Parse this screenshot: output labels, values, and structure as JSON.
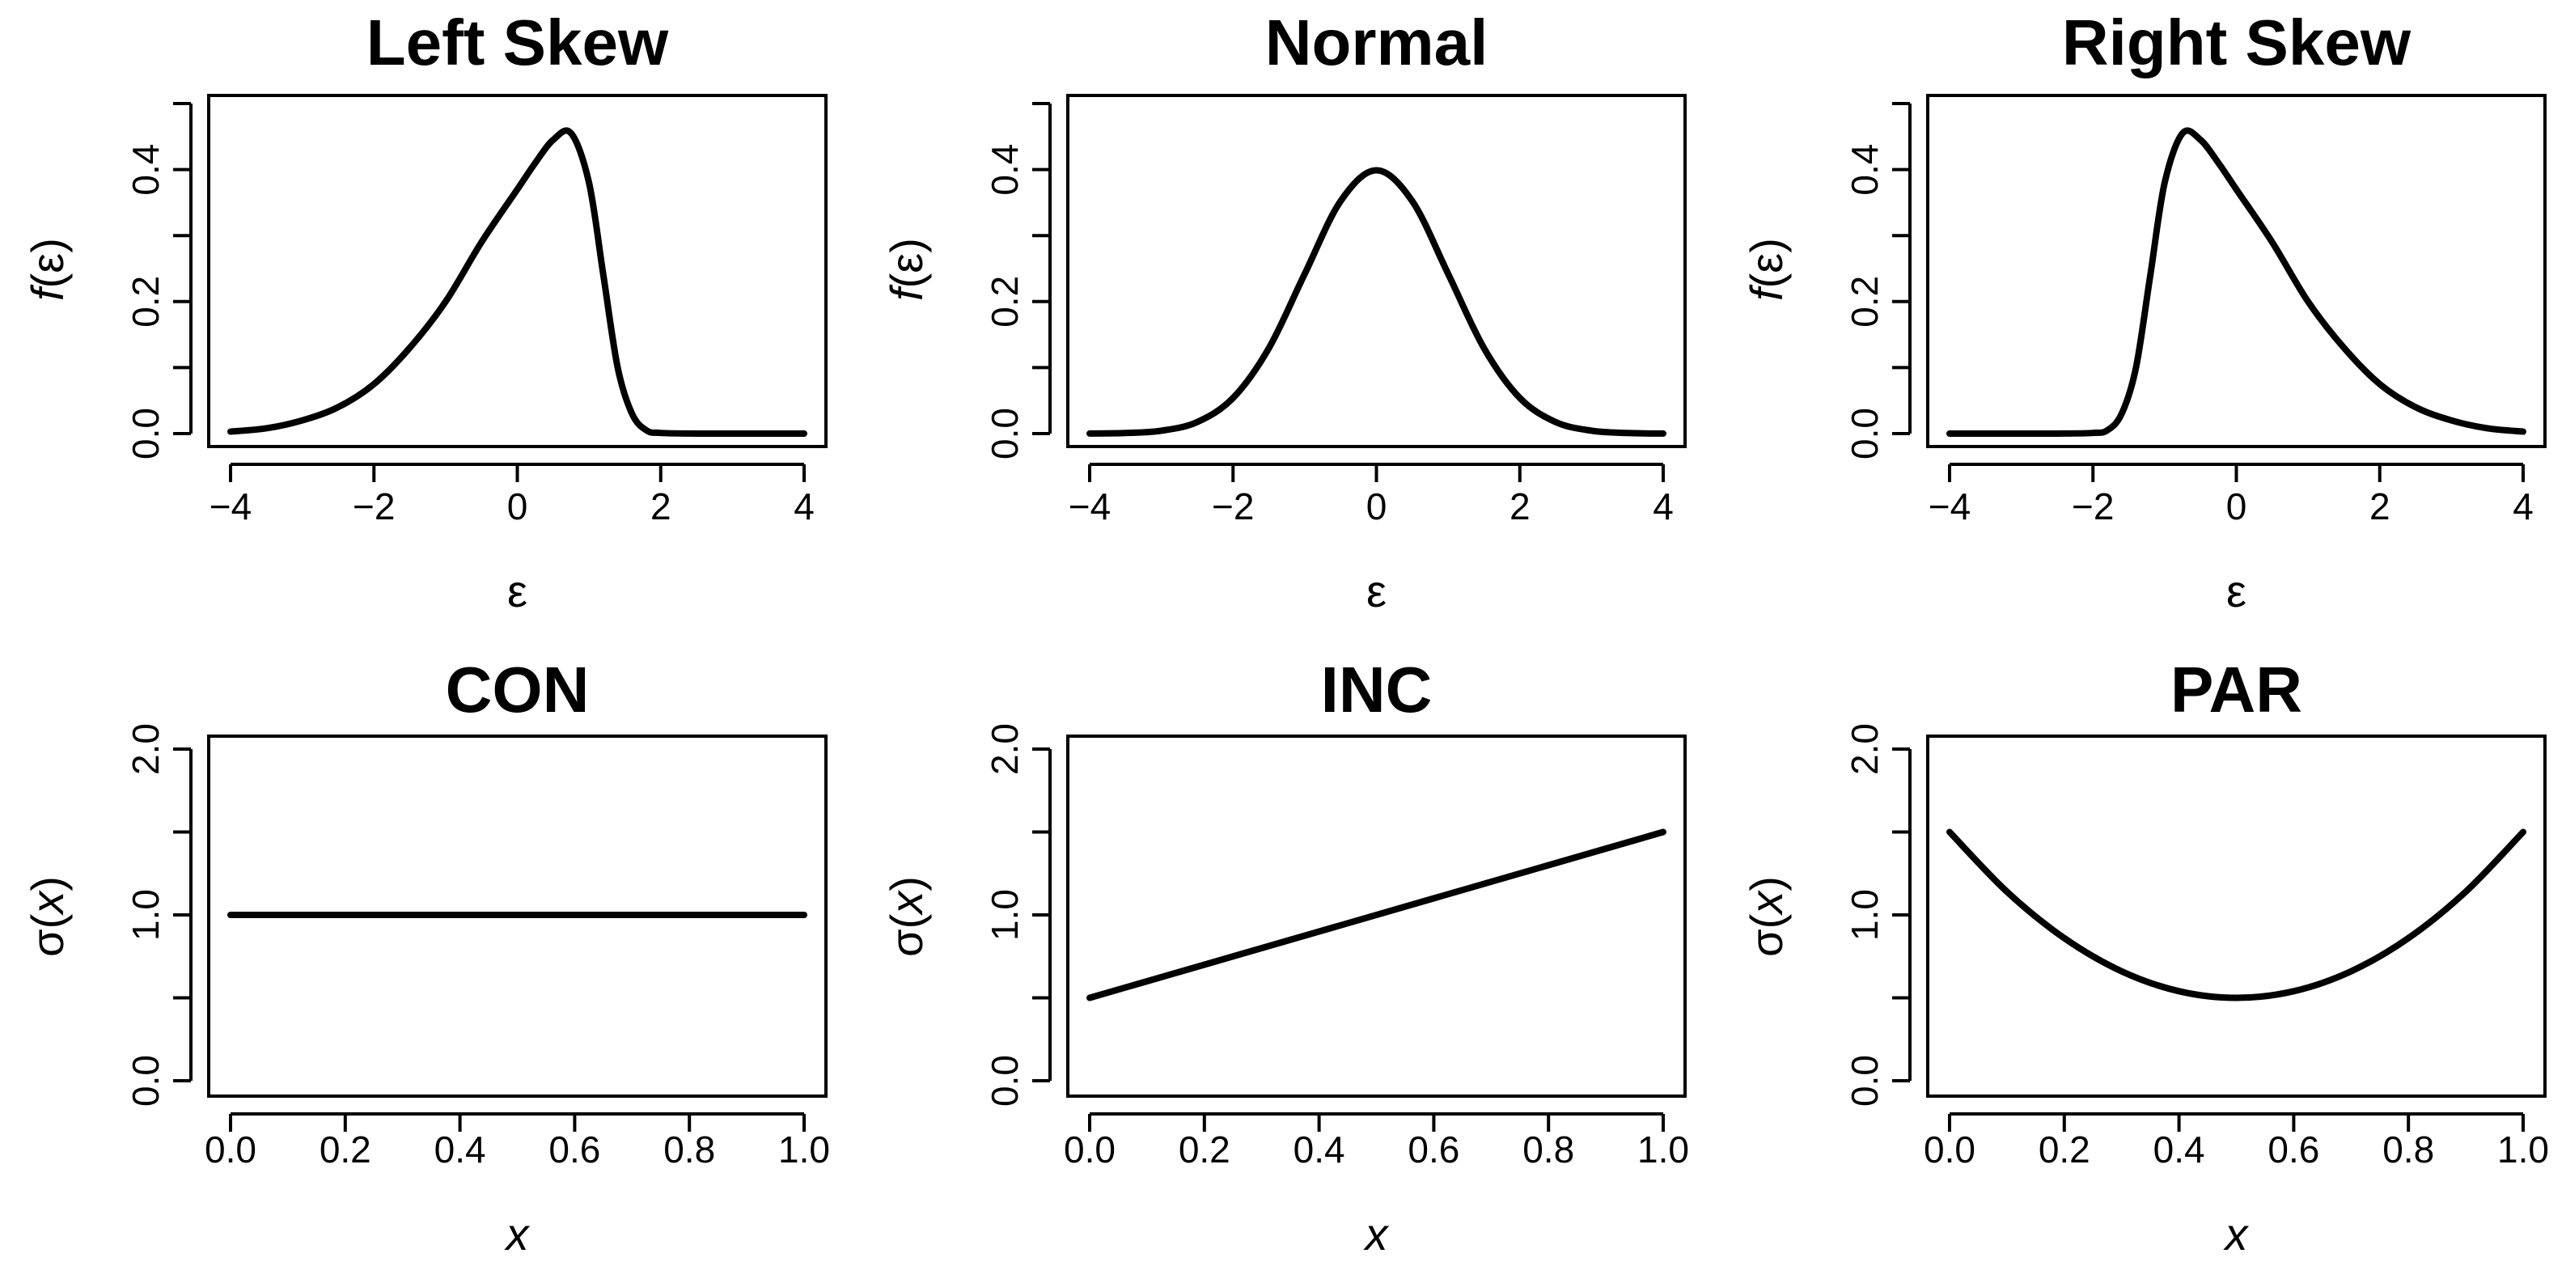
{
  "chart_data": [
    {
      "type": "line",
      "title": "Left Skew",
      "xlabel": "ε",
      "ylabel_fn": "f",
      "ylabel_arg": "(ε)",
      "xlim": [
        -4,
        4
      ],
      "ylim": [
        0,
        0.5
      ],
      "xticks": [
        "−4",
        "−2",
        "0",
        "2",
        "4"
      ],
      "xtick_values": [
        -4,
        -2,
        0,
        2,
        4
      ],
      "yticks": [
        "0.0",
        "0.2",
        "0.4"
      ],
      "ytick_values": [
        0,
        0.2,
        0.4
      ],
      "yminor_values": [
        0.1,
        0.3,
        0.5
      ],
      "series": [
        {
          "name": "Left Skew density",
          "x": [
            -4,
            -3.5,
            -3,
            -2.5,
            -2,
            -1.5,
            -1,
            -0.5,
            0,
            0.25,
            0.5,
            0.75,
            1.0,
            1.2,
            1.4,
            1.6,
            1.8,
            2,
            2.5,
            3,
            4
          ],
          "y": [
            0.003,
            0.008,
            0.02,
            0.04,
            0.075,
            0.13,
            0.2,
            0.29,
            0.37,
            0.41,
            0.445,
            0.455,
            0.38,
            0.24,
            0.1,
            0.03,
            0.005,
            0.001,
            0,
            0,
            0
          ]
        }
      ]
    },
    {
      "type": "line",
      "title": "Normal",
      "xlabel": "ε",
      "ylabel_fn": "f",
      "ylabel_arg": "(ε)",
      "xlim": [
        -4,
        4
      ],
      "ylim": [
        0,
        0.5
      ],
      "xticks": [
        "−4",
        "−2",
        "0",
        "2",
        "4"
      ],
      "xtick_values": [
        -4,
        -2,
        0,
        2,
        4
      ],
      "yticks": [
        "0.0",
        "0.2",
        "0.4"
      ],
      "ytick_values": [
        0,
        0.2,
        0.4
      ],
      "yminor_values": [
        0.1,
        0.3,
        0.5
      ],
      "series": [
        {
          "name": "Normal density",
          "x": [
            -4,
            -3.5,
            -3,
            -2.5,
            -2,
            -1.5,
            -1,
            -0.5,
            0,
            0.5,
            1,
            1.5,
            2,
            2.5,
            3,
            3.5,
            4
          ],
          "y": [
            0.0001,
            0.0009,
            0.0044,
            0.0175,
            0.054,
            0.1295,
            0.242,
            0.3521,
            0.3989,
            0.3521,
            0.242,
            0.1295,
            0.054,
            0.0175,
            0.0044,
            0.0009,
            0.0001
          ]
        }
      ]
    },
    {
      "type": "line",
      "title": "Right Skew",
      "xlabel": "ε",
      "ylabel_fn": "f",
      "ylabel_arg": "(ε)",
      "xlim": [
        -4,
        4
      ],
      "ylim": [
        0,
        0.5
      ],
      "xticks": [
        "−4",
        "−2",
        "0",
        "2",
        "4"
      ],
      "xtick_values": [
        -4,
        -2,
        0,
        2,
        4
      ],
      "yticks": [
        "0.0",
        "0.2",
        "0.4"
      ],
      "ytick_values": [
        0,
        0.2,
        0.4
      ],
      "yminor_values": [
        0.1,
        0.3,
        0.5
      ],
      "series": [
        {
          "name": "Right Skew density",
          "x": [
            -4,
            -3,
            -2.5,
            -2,
            -1.8,
            -1.6,
            -1.4,
            -1.2,
            -1.0,
            -0.75,
            -0.5,
            -0.25,
            0,
            0.5,
            1,
            1.5,
            2,
            2.5,
            3,
            3.5,
            4
          ],
          "y": [
            0,
            0,
            0,
            0.001,
            0.005,
            0.03,
            0.1,
            0.24,
            0.38,
            0.455,
            0.445,
            0.41,
            0.37,
            0.29,
            0.2,
            0.13,
            0.075,
            0.04,
            0.02,
            0.008,
            0.003
          ]
        }
      ]
    },
    {
      "type": "line",
      "title": "CON",
      "xlabel": "x",
      "ylabel_fn": "σ",
      "ylabel_arg": "(x)",
      "xlim": [
        0,
        1
      ],
      "ylim": [
        0,
        2
      ],
      "xticks": [
        "0.0",
        "0.2",
        "0.4",
        "0.6",
        "0.8",
        "1.0"
      ],
      "xtick_values": [
        0,
        0.2,
        0.4,
        0.6,
        0.8,
        1.0
      ],
      "yticks": [
        "0.0",
        "1.0",
        "2.0"
      ],
      "ytick_values": [
        0,
        1,
        2
      ],
      "yminor_values": [
        0.5,
        1.5
      ],
      "series": [
        {
          "name": "CON sigma",
          "x": [
            0,
            1
          ],
          "y": [
            1.0,
            1.0
          ]
        }
      ]
    },
    {
      "type": "line",
      "title": "INC",
      "xlabel": "x",
      "ylabel_fn": "σ",
      "ylabel_arg": "(x)",
      "xlim": [
        0,
        1
      ],
      "ylim": [
        0,
        2
      ],
      "xticks": [
        "0.0",
        "0.2",
        "0.4",
        "0.6",
        "0.8",
        "1.0"
      ],
      "xtick_values": [
        0,
        0.2,
        0.4,
        0.6,
        0.8,
        1.0
      ],
      "yticks": [
        "0.0",
        "1.0",
        "2.0"
      ],
      "ytick_values": [
        0,
        1,
        2
      ],
      "yminor_values": [
        0.5,
        1.5
      ],
      "series": [
        {
          "name": "INC sigma",
          "x": [
            0,
            1
          ],
          "y": [
            0.5,
            1.5
          ]
        }
      ]
    },
    {
      "type": "line",
      "title": "PAR",
      "xlabel": "x",
      "ylabel_fn": "σ",
      "ylabel_arg": "(x)",
      "xlim": [
        0,
        1
      ],
      "ylim": [
        0,
        2
      ],
      "xticks": [
        "0.0",
        "0.2",
        "0.4",
        "0.6",
        "0.8",
        "1.0"
      ],
      "xtick_values": [
        0,
        0.2,
        0.4,
        0.6,
        0.8,
        1.0
      ],
      "yticks": [
        "0.0",
        "1.0",
        "2.0"
      ],
      "ytick_values": [
        0,
        1,
        2
      ],
      "yminor_values": [
        0.5,
        1.5
      ],
      "series": [
        {
          "name": "PAR sigma",
          "x": [
            0,
            0.1,
            0.2,
            0.3,
            0.4,
            0.5,
            0.6,
            0.7,
            0.8,
            0.9,
            1.0
          ],
          "y": [
            1.5,
            1.14,
            0.86,
            0.66,
            0.54,
            0.5,
            0.54,
            0.66,
            0.86,
            1.14,
            1.5
          ]
        }
      ]
    }
  ]
}
